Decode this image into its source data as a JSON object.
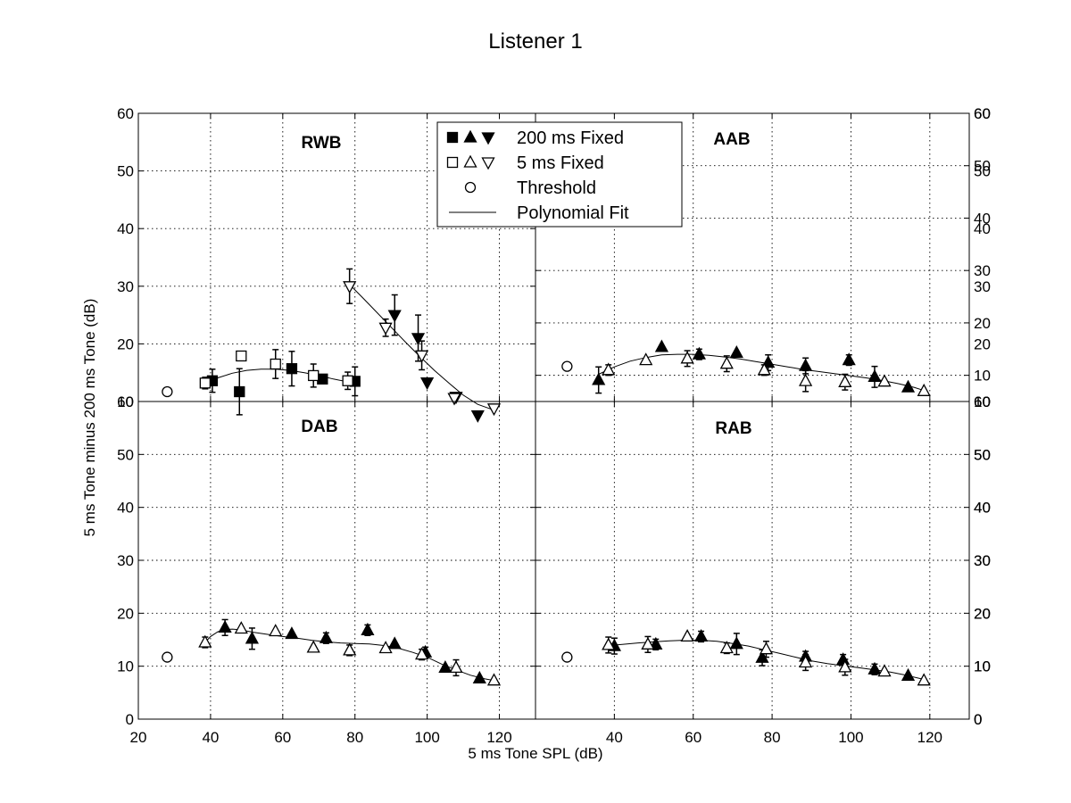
{
  "figure": {
    "title": "Listener 1",
    "xlabel": "5 ms Tone SPL (dB)",
    "ylabel": "5 ms Tone minus 200 ms Tone (dB)"
  },
  "legend": {
    "placement": "top-center",
    "entries": [
      {
        "label": "200 ms Fixed",
        "markers": [
          "square-filled",
          "triangle-up-filled",
          "triangle-down-filled"
        ]
      },
      {
        "label": "5 ms Fixed",
        "markers": [
          "square-open",
          "triangle-up-open",
          "triangle-down-open"
        ]
      },
      {
        "label": "Threshold",
        "markers": [
          "circle-open"
        ]
      },
      {
        "label": "Polynomial  Fit",
        "markers": [
          "line"
        ]
      }
    ]
  },
  "chart_data": [
    {
      "type": "scatter",
      "panel": "RWB",
      "label": "RWB",
      "xlim": [
        20,
        130
      ],
      "ylim": [
        10,
        60
      ],
      "xticks": [
        20,
        40,
        60,
        80,
        100,
        120
      ],
      "yticks": [
        10,
        20,
        30,
        40,
        50,
        60
      ],
      "grid": true,
      "y_tick_labels_shown": [
        "10",
        "20",
        "30",
        "40",
        "50",
        "60"
      ],
      "x_tick_labels_shown": [],
      "threshold": {
        "x": 28,
        "y": 11.7
      },
      "points": [
        {
          "x": 40.5,
          "y": 13.6,
          "marker": "square-filled",
          "err": 2
        },
        {
          "x": 48,
          "y": 11.7,
          "marker": "square-filled",
          "err": 4
        },
        {
          "x": 62.5,
          "y": 15.7,
          "marker": "square-filled",
          "err": 3
        },
        {
          "x": 71,
          "y": 13.9,
          "marker": "square-filled",
          "err": 0
        },
        {
          "x": 80,
          "y": 13.5,
          "marker": "square-filled",
          "err": 2.5
        },
        {
          "x": 38.5,
          "y": 13.2,
          "marker": "square-open",
          "err": 1
        },
        {
          "x": 48.5,
          "y": 17.9,
          "marker": "square-open",
          "err": 0
        },
        {
          "x": 58,
          "y": 16.5,
          "marker": "square-open",
          "err": 2.5
        },
        {
          "x": 68.5,
          "y": 14.5,
          "marker": "square-open",
          "err": 2
        },
        {
          "x": 78,
          "y": 13.6,
          "marker": "square-open",
          "err": 1.5
        },
        {
          "x": 91,
          "y": 25,
          "marker": "triangle-down-filled",
          "err": 3.5
        },
        {
          "x": 97.5,
          "y": 21,
          "marker": "triangle-down-filled",
          "err": 4
        },
        {
          "x": 100,
          "y": 13.3,
          "marker": "triangle-down-filled",
          "err": 0
        },
        {
          "x": 108,
          "y": 10.8,
          "marker": "triangle-down-filled",
          "err": 0
        },
        {
          "x": 114,
          "y": 7.6,
          "marker": "triangle-down-filled",
          "err": 0
        },
        {
          "x": 78.5,
          "y": 30,
          "marker": "triangle-down-open",
          "err": 3
        },
        {
          "x": 88.5,
          "y": 22.8,
          "marker": "triangle-down-open",
          "err": 1.5
        },
        {
          "x": 98.5,
          "y": 18,
          "marker": "triangle-down-open",
          "err": 2.5
        },
        {
          "x": 107.5,
          "y": 10.6,
          "marker": "triangle-down-open",
          "err": 0
        },
        {
          "x": 118.5,
          "y": 8.8,
          "marker": "triangle-down-open",
          "err": 0
        }
      ],
      "fits": [
        {
          "x": [
            38,
            42,
            46,
            50,
            54,
            58,
            62,
            66,
            70,
            74,
            78,
            80
          ],
          "y": [
            13.0,
            14.1,
            14.9,
            15.4,
            15.6,
            15.6,
            15.4,
            15.0,
            14.5,
            13.9,
            13.4,
            13.1
          ]
        },
        {
          "x": [
            78.5,
            82,
            86,
            90,
            94,
            98,
            102,
            106,
            110,
            114,
            118.5
          ],
          "y": [
            30.3,
            28.1,
            25.5,
            22.9,
            20.3,
            17.8,
            15.4,
            13.2,
            11.1,
            9.5,
            8.5
          ]
        }
      ]
    },
    {
      "type": "scatter",
      "panel": "AAB",
      "label": "AAB",
      "xlim": [
        20,
        130
      ],
      "ylim": [
        5,
        60
      ],
      "xticks": [
        20,
        40,
        60,
        80,
        100,
        120
      ],
      "yticks": [
        10,
        20,
        30,
        40,
        50,
        60
      ],
      "grid": true,
      "y_tick_labels_shown": [
        "10",
        "20",
        "30",
        "40",
        "50",
        "60"
      ],
      "x_tick_labels_shown": [],
      "threshold": {
        "x": 28,
        "y": 11.7
      },
      "points": [
        {
          "x": 36,
          "y": 9.1,
          "marker": "triangle-up-filled",
          "err": 2.5
        },
        {
          "x": 52,
          "y": 15.4,
          "marker": "triangle-up-filled",
          "err": 0
        },
        {
          "x": 61.5,
          "y": 14,
          "marker": "triangle-up-filled",
          "err": 1
        },
        {
          "x": 71,
          "y": 14.3,
          "marker": "triangle-up-filled",
          "err": 0
        },
        {
          "x": 79,
          "y": 12.4,
          "marker": "triangle-up-filled",
          "err": 1.5
        },
        {
          "x": 88.5,
          "y": 11.8,
          "marker": "triangle-up-filled",
          "err": 1.5
        },
        {
          "x": 99.5,
          "y": 12.9,
          "marker": "triangle-up-filled",
          "err": 1
        },
        {
          "x": 106,
          "y": 9.7,
          "marker": "triangle-up-filled",
          "err": 2
        },
        {
          "x": 114.5,
          "y": 7.7,
          "marker": "triangle-up-filled",
          "err": 0
        },
        {
          "x": 38.5,
          "y": 11,
          "marker": "triangle-up-open",
          "err": 1
        },
        {
          "x": 48,
          "y": 12.9,
          "marker": "triangle-up-open",
          "err": 0
        },
        {
          "x": 58.5,
          "y": 13.2,
          "marker": "triangle-up-open",
          "err": 1.5
        },
        {
          "x": 68.5,
          "y": 12.2,
          "marker": "triangle-up-open",
          "err": 1.5
        },
        {
          "x": 78,
          "y": 11,
          "marker": "triangle-up-open",
          "err": 1
        },
        {
          "x": 88.5,
          "y": 8.9,
          "marker": "triangle-up-open",
          "err": 2
        },
        {
          "x": 98.5,
          "y": 8.7,
          "marker": "triangle-up-open",
          "err": 1.5
        },
        {
          "x": 108.5,
          "y": 8.8,
          "marker": "triangle-up-open",
          "err": 0
        },
        {
          "x": 118.5,
          "y": 7,
          "marker": "triangle-up-open",
          "err": 0
        }
      ],
      "fits": [
        {
          "x": [
            36,
            40,
            44,
            48,
            52,
            56,
            60,
            64,
            68,
            72,
            76,
            80,
            84,
            88,
            92,
            96,
            100,
            104,
            108,
            112,
            116,
            118.5
          ],
          "y": [
            10.2,
            11.6,
            12.7,
            13.4,
            13.9,
            14.0,
            14.0,
            13.8,
            13.5,
            13.1,
            12.6,
            12.1,
            11.6,
            11.1,
            10.7,
            10.3,
            9.9,
            9.5,
            9.0,
            8.4,
            7.7,
            7.1
          ]
        }
      ]
    },
    {
      "type": "scatter",
      "panel": "DAB",
      "label": "DAB",
      "xlim": [
        20,
        130
      ],
      "ylim": [
        0,
        60
      ],
      "xticks": [
        20,
        40,
        60,
        80,
        100,
        120
      ],
      "yticks": [
        0,
        10,
        20,
        30,
        40,
        50,
        60
      ],
      "grid": true,
      "y_tick_labels_shown": [
        "0",
        "10",
        "20",
        "30",
        "40",
        "50",
        "60"
      ],
      "x_tick_labels_shown": [
        "20",
        "40",
        "60",
        "80",
        "100",
        "120"
      ],
      "threshold": {
        "x": 28,
        "y": 11.7
      },
      "points": [
        {
          "x": 44,
          "y": 17.3,
          "marker": "triangle-up-filled",
          "err": 1.5
        },
        {
          "x": 51.5,
          "y": 15.2,
          "marker": "triangle-up-filled",
          "err": 2
        },
        {
          "x": 62.5,
          "y": 16.1,
          "marker": "triangle-up-filled",
          "err": 0
        },
        {
          "x": 72,
          "y": 15.3,
          "marker": "triangle-up-filled",
          "err": 1
        },
        {
          "x": 83.5,
          "y": 16.8,
          "marker": "triangle-up-filled",
          "err": 1
        },
        {
          "x": 91,
          "y": 14.2,
          "marker": "triangle-up-filled",
          "err": 0
        },
        {
          "x": 99.5,
          "y": 12.6,
          "marker": "triangle-up-filled",
          "err": 1
        },
        {
          "x": 105,
          "y": 9.7,
          "marker": "triangle-up-filled",
          "err": 0
        },
        {
          "x": 114.5,
          "y": 7.7,
          "marker": "triangle-up-filled",
          "err": 0
        },
        {
          "x": 38.5,
          "y": 14.5,
          "marker": "triangle-up-open",
          "err": 1
        },
        {
          "x": 48.5,
          "y": 17.1,
          "marker": "triangle-up-open",
          "err": 0
        },
        {
          "x": 58,
          "y": 16.6,
          "marker": "triangle-up-open",
          "err": 0
        },
        {
          "x": 68.5,
          "y": 13.5,
          "marker": "triangle-up-open",
          "err": 0
        },
        {
          "x": 78.5,
          "y": 13,
          "marker": "triangle-up-open",
          "err": 1
        },
        {
          "x": 88.5,
          "y": 13.4,
          "marker": "triangle-up-open",
          "err": 0
        },
        {
          "x": 98.5,
          "y": 12.2,
          "marker": "triangle-up-open",
          "err": 1
        },
        {
          "x": 108,
          "y": 9.7,
          "marker": "triangle-up-open",
          "err": 1.5
        },
        {
          "x": 118.5,
          "y": 7.3,
          "marker": "triangle-up-open",
          "err": 0
        }
      ],
      "fits": [
        {
          "x": [
            38.5,
            40,
            42,
            44,
            46,
            48,
            52,
            56,
            60,
            64,
            68,
            72,
            76,
            80,
            84,
            88,
            92,
            96,
            100,
            104,
            108,
            112,
            116,
            118.5
          ],
          "y": [
            14.5,
            15.6,
            16.5,
            16.9,
            17.0,
            16.9,
            16.4,
            16.0,
            15.6,
            15.3,
            14.9,
            14.6,
            14.4,
            14.3,
            14.2,
            13.9,
            13.4,
            12.6,
            11.7,
            10.4,
            9.3,
            8.3,
            7.6,
            7.3
          ]
        }
      ]
    },
    {
      "type": "scatter",
      "panel": "RAB",
      "label": "RAB",
      "xlim": [
        20,
        130
      ],
      "ylim": [
        0,
        60
      ],
      "xticks": [
        20,
        40,
        60,
        80,
        100,
        120
      ],
      "yticks": [
        0,
        10,
        20,
        30,
        40,
        50,
        60
      ],
      "grid": true,
      "y_tick_labels_shown": [
        "0",
        "10",
        "20",
        "30",
        "40",
        "50",
        "60"
      ],
      "x_tick_labels_shown": [
        "40",
        "60",
        "80",
        "100",
        "120"
      ],
      "threshold": {
        "x": 28,
        "y": 11.7
      },
      "points": [
        {
          "x": 40,
          "y": 13.8,
          "marker": "triangle-up-filled",
          "err": 1.5
        },
        {
          "x": 50.5,
          "y": 14.1,
          "marker": "triangle-up-filled",
          "err": 1
        },
        {
          "x": 62,
          "y": 15.6,
          "marker": "triangle-up-filled",
          "err": 1
        },
        {
          "x": 71,
          "y": 14.2,
          "marker": "triangle-up-filled",
          "err": 2
        },
        {
          "x": 77.5,
          "y": 11.6,
          "marker": "triangle-up-filled",
          "err": 1.5
        },
        {
          "x": 88.5,
          "y": 11.8,
          "marker": "triangle-up-filled",
          "err": 1
        },
        {
          "x": 98,
          "y": 11.2,
          "marker": "triangle-up-filled",
          "err": 1
        },
        {
          "x": 106,
          "y": 9.4,
          "marker": "triangle-up-filled",
          "err": 1
        },
        {
          "x": 114.5,
          "y": 8.2,
          "marker": "triangle-up-filled",
          "err": 0
        },
        {
          "x": 38.5,
          "y": 14,
          "marker": "triangle-up-open",
          "err": 1.5
        },
        {
          "x": 48.5,
          "y": 14.1,
          "marker": "triangle-up-open",
          "err": 1.5
        },
        {
          "x": 58.5,
          "y": 15.6,
          "marker": "triangle-up-open",
          "err": 0
        },
        {
          "x": 68.5,
          "y": 13.4,
          "marker": "triangle-up-open",
          "err": 1
        },
        {
          "x": 78.5,
          "y": 13.2,
          "marker": "triangle-up-open",
          "err": 1.5
        },
        {
          "x": 88.5,
          "y": 10.7,
          "marker": "triangle-up-open",
          "err": 1.5
        },
        {
          "x": 98.5,
          "y": 9.8,
          "marker": "triangle-up-open",
          "err": 1.5
        },
        {
          "x": 108.5,
          "y": 9,
          "marker": "triangle-up-open",
          "err": 0
        },
        {
          "x": 118.5,
          "y": 7.3,
          "marker": "triangle-up-open",
          "err": 0
        }
      ],
      "fits": [
        {
          "x": [
            38.5,
            42,
            46,
            50,
            54,
            58,
            62,
            66,
            70,
            74,
            78,
            82,
            86,
            90,
            94,
            98,
            102,
            106,
            110,
            114,
            118.5
          ],
          "y": [
            13.9,
            14.1,
            14.4,
            14.6,
            14.8,
            14.9,
            14.9,
            14.7,
            14.3,
            13.8,
            13.1,
            12.4,
            11.7,
            11.0,
            10.5,
            10.1,
            9.7,
            9.3,
            8.9,
            8.3,
            7.5
          ]
        }
      ]
    }
  ]
}
